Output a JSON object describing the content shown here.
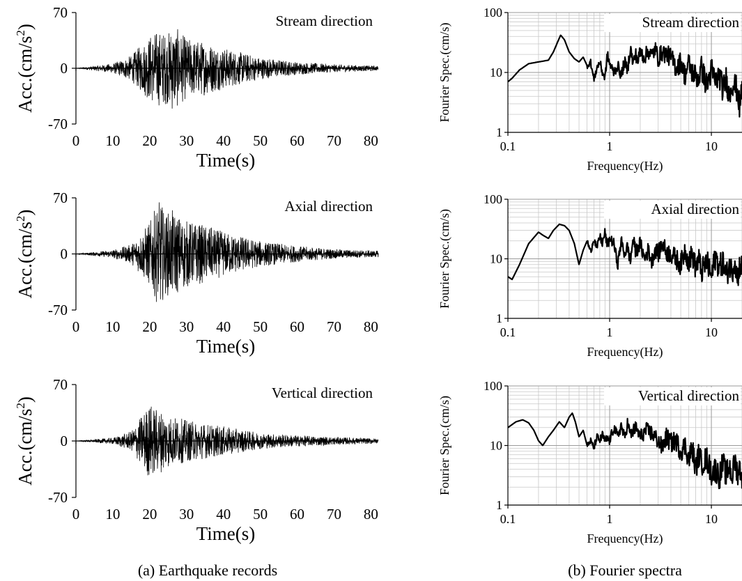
{
  "captions": [
    "(a)   Earthquake records",
    "(b) Fourier spectra"
  ],
  "chart_data": [
    {
      "type": "line",
      "title": "Stream direction",
      "xlabel": "Time(s)",
      "ylabel": "Acc.(cm/s²)",
      "xlim": [
        0,
        82
      ],
      "ylim": [
        -70,
        70
      ],
      "x_ticks": [
        "0",
        "10",
        "20",
        "30",
        "40",
        "50",
        "60",
        "70",
        "80"
      ],
      "y_ticks": [
        "70",
        "0",
        "-70"
      ],
      "series": [
        {
          "x": [
            0,
            10,
            15,
            20,
            22,
            25,
            26,
            27,
            30,
            35,
            40,
            45,
            50,
            60,
            70,
            82
          ],
          "y": [
            0,
            6,
            16,
            42,
            -48,
            45,
            -55,
            52,
            38,
            34,
            26,
            20,
            14,
            8,
            5,
            3
          ]
        }
      ]
    },
    {
      "type": "line",
      "title": "Axial direction",
      "xlabel": "Time(s)",
      "ylabel": "Acc.(cm/s²)",
      "xlim": [
        0,
        82
      ],
      "ylim": [
        -70,
        70
      ],
      "x_ticks": [
        "0",
        "10",
        "20",
        "30",
        "40",
        "50",
        "60",
        "70",
        "80"
      ],
      "y_ticks": [
        "70",
        "0",
        "-70"
      ],
      "series": [
        {
          "x": [
            0,
            10,
            15,
            20,
            22,
            23,
            24,
            26,
            30,
            35,
            40,
            45,
            50,
            60,
            70,
            82
          ],
          "y": [
            0,
            5,
            12,
            40,
            62,
            -68,
            50,
            55,
            42,
            36,
            28,
            22,
            16,
            10,
            6,
            4
          ]
        }
      ]
    },
    {
      "type": "line",
      "title": "Vertical direction",
      "xlabel": "Time(s)",
      "ylabel": "Acc.(cm/s²)",
      "xlim": [
        0,
        82
      ],
      "ylim": [
        -70,
        70
      ],
      "x_ticks": [
        "0",
        "10",
        "20",
        "30",
        "40",
        "50",
        "60",
        "70",
        "80"
      ],
      "y_ticks": [
        "70",
        "0",
        "-70"
      ],
      "series": [
        {
          "x": [
            0,
            10,
            15,
            20,
            22,
            24,
            25,
            30,
            35,
            40,
            45,
            50,
            60,
            70,
            82
          ],
          "y": [
            0,
            4,
            12,
            48,
            40,
            -38,
            33,
            26,
            22,
            18,
            14,
            10,
            7,
            5,
            3
          ]
        }
      ]
    },
    {
      "type": "line",
      "title": "Stream direction",
      "xlabel": "Frequency(Hz)",
      "ylabel": "Fourier Spec.(cm/s)",
      "xscale": "log",
      "yscale": "log",
      "xlim": [
        0.1,
        20
      ],
      "ylim": [
        1,
        100
      ],
      "x_ticks": [
        "0.1",
        "1",
        "10"
      ],
      "y_ticks": [
        "100",
        "10",
        "1"
      ],
      "grid": true,
      "series": [
        {
          "x": [
            0.1,
            0.11,
            0.13,
            0.16,
            0.2,
            0.25,
            0.28,
            0.31,
            0.33,
            0.36,
            0.4,
            0.45,
            0.5,
            0.55,
            0.6,
            0.65,
            0.7,
            0.75,
            0.8,
            0.85,
            0.9,
            0.95,
            1.0,
            1.1,
            1.2,
            1.3,
            1.4,
            1.5,
            1.6,
            1.7,
            1.8,
            1.9,
            2.0,
            2.2,
            2.4,
            2.6,
            2.8,
            3.0,
            3.3,
            3.6,
            4.0,
            4.5,
            5.0,
            5.5,
            6.0,
            6.5,
            7.0,
            7.5,
            8.0,
            9.0,
            10.0,
            11.0,
            12.0,
            13.0,
            14.0,
            15.0,
            16.0,
            17.0,
            18.0,
            19.0,
            20.0
          ],
          "y": [
            7,
            8,
            11,
            14,
            15,
            16,
            22,
            33,
            42,
            35,
            22,
            17,
            15,
            18,
            13,
            15,
            7.5,
            12,
            15,
            10,
            8,
            20,
            14,
            10,
            13,
            9,
            15,
            11,
            26,
            14,
            20,
            16,
            22,
            18,
            23,
            19,
            25,
            17,
            22,
            20,
            18,
            12,
            15,
            9,
            14,
            10,
            9,
            8,
            12,
            6,
            11,
            7,
            9,
            5,
            8,
            4,
            7,
            6,
            5,
            2.5,
            6
          ]
        }
      ]
    },
    {
      "type": "line",
      "title": "Axial direction",
      "xlabel": "Frequency(Hz)",
      "ylabel": "Fourier Spec.(cm/s)",
      "xscale": "log",
      "yscale": "log",
      "xlim": [
        0.1,
        20
      ],
      "ylim": [
        1,
        100
      ],
      "x_ticks": [
        "0.1",
        "1",
        "10"
      ],
      "y_ticks": [
        "100",
        "10",
        "1"
      ],
      "grid": true,
      "series": [
        {
          "x": [
            0.1,
            0.11,
            0.13,
            0.16,
            0.2,
            0.22,
            0.25,
            0.28,
            0.32,
            0.36,
            0.4,
            0.45,
            0.5,
            0.55,
            0.6,
            0.65,
            0.7,
            0.75,
            0.8,
            0.85,
            0.9,
            0.95,
            1.0,
            1.1,
            1.2,
            1.3,
            1.4,
            1.5,
            1.6,
            1.7,
            1.8,
            2.0,
            2.2,
            2.4,
            2.6,
            2.8,
            3.0,
            3.3,
            3.6,
            4.0,
            4.5,
            5.0,
            5.5,
            6.0,
            6.5,
            7.0,
            7.5,
            8.0,
            9.0,
            10.0,
            11.0,
            12.0,
            13.0,
            14.0,
            15.0,
            16.0,
            17.0,
            18.0,
            19.0,
            20.0
          ],
          "y": [
            5,
            4.5,
            8,
            18,
            28,
            25,
            22,
            30,
            38,
            36,
            30,
            18,
            8,
            14,
            20,
            13,
            22,
            15,
            24,
            18,
            28,
            16,
            22,
            18,
            8,
            20,
            12,
            16,
            9,
            22,
            13,
            18,
            10,
            14,
            9,
            15,
            12,
            18,
            13,
            12,
            10,
            8,
            14,
            9,
            12,
            7,
            10,
            6,
            9,
            5,
            11,
            7,
            9,
            5,
            8,
            6,
            10,
            4.5,
            8,
            7
          ]
        }
      ]
    },
    {
      "type": "line",
      "title": "Vertical direction",
      "xlabel": "Frequency(Hz)",
      "ylabel": "Fourier Spec.(cm/s)",
      "xscale": "log",
      "yscale": "log",
      "xlim": [
        0.1,
        20
      ],
      "ylim": [
        1,
        100
      ],
      "x_ticks": [
        "0.1",
        "1",
        "10"
      ],
      "y_ticks": [
        "100",
        "10",
        "1"
      ],
      "grid": true,
      "series": [
        {
          "x": [
            0.1,
            0.12,
            0.14,
            0.16,
            0.18,
            0.2,
            0.22,
            0.25,
            0.28,
            0.32,
            0.36,
            0.4,
            0.43,
            0.46,
            0.5,
            0.55,
            0.6,
            0.65,
            0.7,
            0.75,
            0.8,
            0.85,
            0.9,
            0.95,
            1.0,
            1.1,
            1.2,
            1.3,
            1.4,
            1.5,
            1.6,
            1.8,
            2.0,
            2.3,
            2.6,
            3.0,
            3.3,
            3.6,
            4.0,
            4.5,
            5.0,
            5.5,
            6.0,
            6.5,
            7.0,
            7.5,
            8.0,
            9.0,
            10.0,
            11.0,
            12.0,
            13.0,
            14.0,
            15.0,
            16.0,
            17.0,
            18.0,
            19.0,
            20.0
          ],
          "y": [
            20,
            25,
            27,
            24,
            18,
            12,
            10,
            14,
            18,
            25,
            20,
            30,
            35,
            25,
            14,
            18,
            10,
            12,
            9,
            14,
            12,
            15,
            12,
            13,
            12,
            20,
            14,
            22,
            13,
            24,
            15,
            20,
            14,
            18,
            16,
            12,
            9,
            14,
            11,
            12,
            8,
            10,
            6,
            9,
            4,
            7,
            5,
            6,
            3.5,
            4,
            3,
            5,
            3.2,
            4.5,
            3,
            5.5,
            3.5,
            4.2,
            3
          ]
        }
      ]
    }
  ]
}
